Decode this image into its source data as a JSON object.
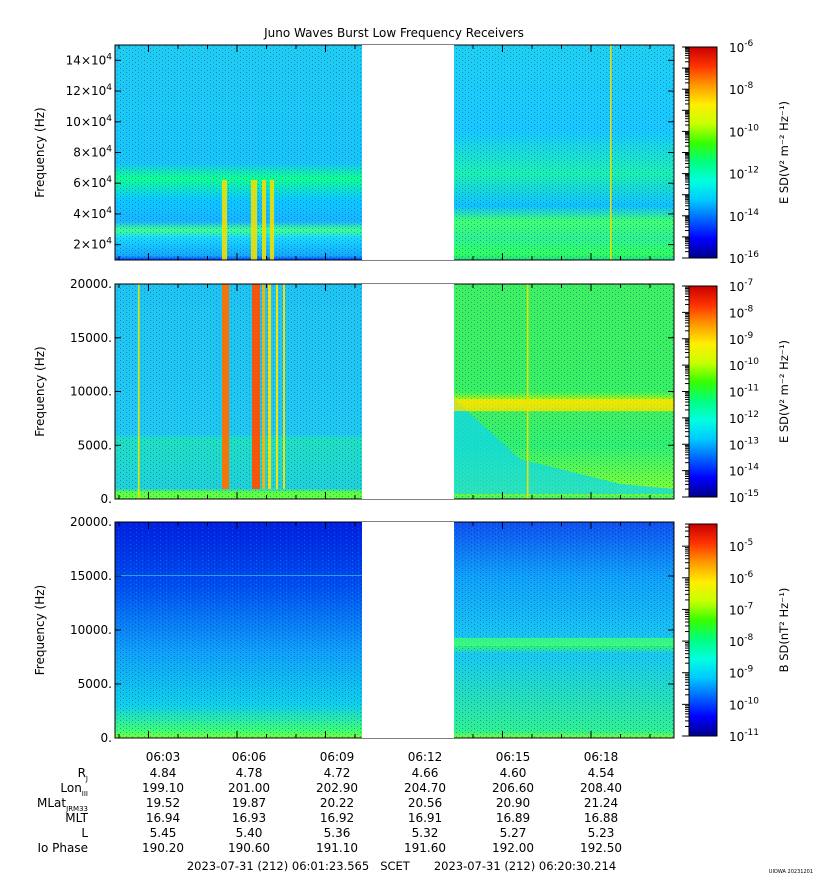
{
  "title": "Juno Waves Burst Low Frequency Receivers",
  "watermark": "UIOWA 20231201",
  "colors": {
    "gap": "#ffffff",
    "colormap": [
      "#00008c",
      "#0000ff",
      "#0064ff",
      "#00c8ff",
      "#00ffe0",
      "#00ff7f",
      "#36ff00",
      "#c8ff00",
      "#ffee00",
      "#ff9900",
      "#ff3300",
      "#c80000"
    ]
  },
  "chart_data": [
    {
      "type": "heatmap",
      "name": "panel-1",
      "ylabel": "Frequency (Hz)",
      "yticks": [
        {
          "v": 20000,
          "base": "2×10",
          "exp": "4"
        },
        {
          "v": 40000,
          "base": "4×10",
          "exp": "4"
        },
        {
          "v": 60000,
          "base": "6×10",
          "exp": "4"
        },
        {
          "v": 80000,
          "base": "8×10",
          "exp": "4"
        },
        {
          "v": 100000,
          "base": "10×10",
          "exp": "4"
        },
        {
          "v": 120000,
          "base": "12×10",
          "exp": "4"
        },
        {
          "v": 140000,
          "base": "14×10",
          "exp": "4"
        }
      ],
      "ylim": [
        10000,
        150000
      ],
      "colorbar": {
        "label": "E SD(V² m⁻² Hz⁻¹)",
        "log_range": [
          -16,
          -6
        ],
        "labeled_exponents": [
          "-6",
          "-8",
          "-10",
          "-12",
          "-14",
          "-16"
        ],
        "labels": [
          {
            "base": "10",
            "exp": "-6"
          },
          {
            "base": "10",
            "exp": "-8"
          },
          {
            "base": "10",
            "exp": "-10"
          },
          {
            "base": "10",
            "exp": "-12"
          },
          {
            "base": "10",
            "exp": "-14"
          },
          {
            "base": "10",
            "exp": "-16"
          }
        ]
      }
    },
    {
      "type": "heatmap",
      "name": "panel-2",
      "ylabel": "Frequency (Hz)",
      "yticks": [
        {
          "v": 0,
          "text": "0."
        },
        {
          "v": 5000,
          "text": "5000."
        },
        {
          "v": 10000,
          "text": "10000."
        },
        {
          "v": 15000,
          "text": "15000."
        },
        {
          "v": 20000,
          "text": "20000."
        }
      ],
      "ylim": [
        0,
        20000
      ],
      "colorbar": {
        "label": "E SD(V² m⁻² Hz⁻¹)",
        "log_range": [
          -15,
          -7
        ],
        "labels": [
          {
            "base": "10",
            "exp": "-7"
          },
          {
            "base": "10",
            "exp": "-8"
          },
          {
            "base": "10",
            "exp": "-9"
          },
          {
            "base": "10",
            "exp": "-10"
          },
          {
            "base": "10",
            "exp": "-11"
          },
          {
            "base": "10",
            "exp": "-12"
          },
          {
            "base": "10",
            "exp": "-13"
          },
          {
            "base": "10",
            "exp": "-14"
          },
          {
            "base": "10",
            "exp": "-15"
          }
        ]
      }
    },
    {
      "type": "heatmap",
      "name": "panel-3",
      "ylabel": "Frequency (Hz)",
      "yticks": [
        {
          "v": 0,
          "text": "0."
        },
        {
          "v": 5000,
          "text": "5000."
        },
        {
          "v": 10000,
          "text": "10000."
        },
        {
          "v": 15000,
          "text": "15000."
        },
        {
          "v": 20000,
          "text": "20000."
        }
      ],
      "ylim": [
        0,
        20000
      ],
      "colorbar": {
        "label": "B SD(nT² Hz⁻¹)",
        "log_range": [
          -11,
          -4.3
        ],
        "labels": [
          {
            "base": "10",
            "exp": "-5"
          },
          {
            "base": "10",
            "exp": "-6"
          },
          {
            "base": "10",
            "exp": "-7"
          },
          {
            "base": "10",
            "exp": "-8"
          },
          {
            "base": "10",
            "exp": "-9"
          },
          {
            "base": "10",
            "exp": "-10"
          },
          {
            "base": "10",
            "exp": "-11"
          }
        ]
      }
    }
  ],
  "ephemeris": {
    "times": [
      "06:03",
      "06:06",
      "06:09",
      "06:12",
      "06:15",
      "06:18"
    ],
    "rows": [
      {
        "label": "R",
        "sub": "J",
        "values": [
          "4.84",
          "4.78",
          "4.72",
          "4.66",
          "4.60",
          "4.54"
        ]
      },
      {
        "label": "Lon",
        "sub": "III",
        "values": [
          "199.10",
          "201.00",
          "202.90",
          "204.70",
          "206.60",
          "208.40"
        ]
      },
      {
        "label": "MLat",
        "sub": "JRM33",
        "values": [
          "19.52",
          "19.87",
          "20.22",
          "20.56",
          "20.90",
          "21.24"
        ]
      },
      {
        "label": "MLT",
        "sub": "",
        "values": [
          "16.94",
          "16.93",
          "16.92",
          "16.91",
          "16.89",
          "16.88"
        ]
      },
      {
        "label": "L",
        "sub": "",
        "values": [
          "5.45",
          "5.40",
          "5.36",
          "5.32",
          "5.27",
          "5.23"
        ]
      },
      {
        "label": "Io Phase",
        "sub": "",
        "values": [
          "190.20",
          "190.60",
          "191.10",
          "191.60",
          "192.00",
          "192.50"
        ]
      }
    ]
  },
  "footer": {
    "start": "2023-07-31 (212) 06:01:23.565",
    "scet": "SCET",
    "end": "2023-07-31 (212) 06:20:30.214"
  }
}
